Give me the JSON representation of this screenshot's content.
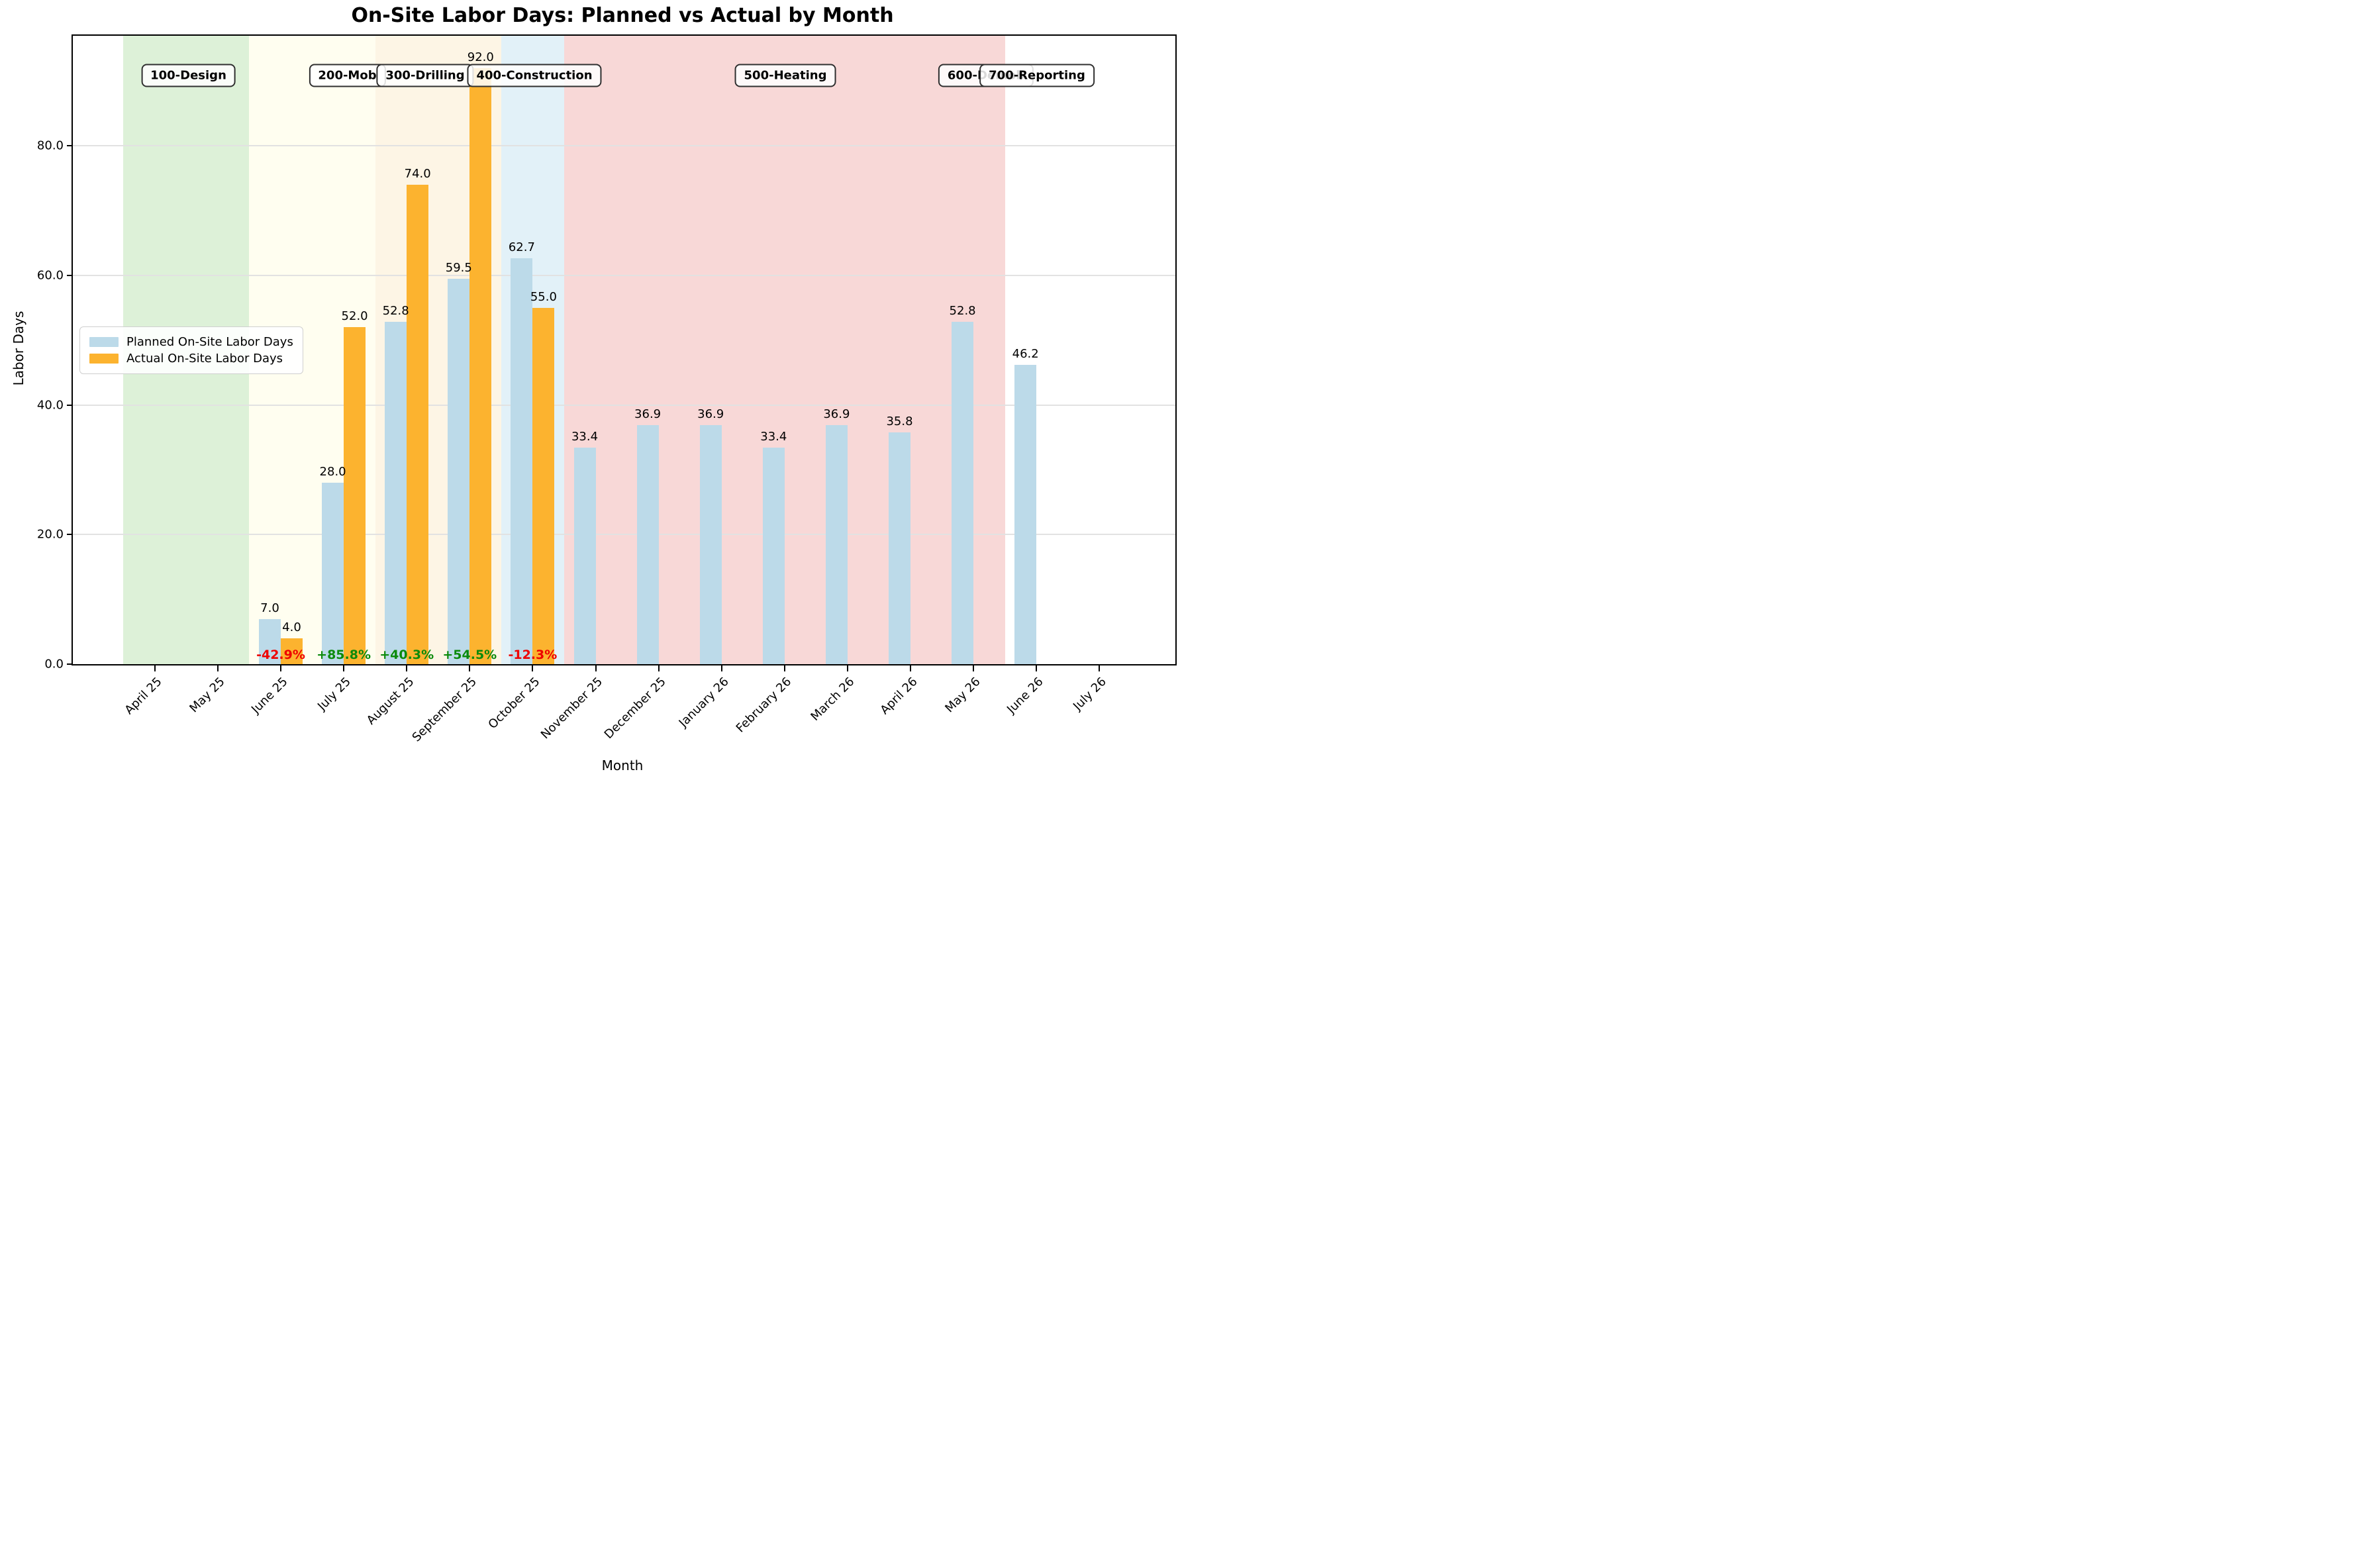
{
  "title": "On-Site Labor Days: Planned vs Actual by Month",
  "axes": {
    "xlabel": "Month",
    "ylabel": "Labor Days",
    "ytick_labels": [
      "0.0",
      "20.0",
      "40.0",
      "60.0",
      "80.0"
    ]
  },
  "legend": {
    "items": [
      {
        "label": "Planned On-Site Labor Days",
        "color": "#bcdae9"
      },
      {
        "label": "Actual On-Site Labor Days",
        "color": "#fcb32f"
      }
    ]
  },
  "chart_data": {
    "type": "bar",
    "title": "On-Site Labor Days: Planned vs Actual by Month",
    "xlabel": "Month",
    "ylabel": "Labor Days",
    "ylim": [
      0,
      97
    ],
    "yticks": [
      0,
      20,
      40,
      60,
      80
    ],
    "grid": "horizontal",
    "legend_position": "center-left",
    "categories": [
      "April 25",
      "May 25",
      "June 25",
      "July 25",
      "August 25",
      "September 25",
      "October 25",
      "November 25",
      "December 25",
      "January 26",
      "February 26",
      "March 26",
      "April 26",
      "May 26",
      "June 26",
      "July 26"
    ],
    "series": [
      {
        "name": "Planned On-Site Labor Days",
        "color": "#bcdae9",
        "values": [
          null,
          null,
          7.0,
          28.0,
          52.8,
          59.5,
          62.7,
          33.4,
          36.9,
          36.9,
          33.4,
          36.9,
          35.8,
          52.8,
          46.2,
          null
        ]
      },
      {
        "name": "Actual On-Site Labor Days",
        "color": "#fcb32f",
        "values": [
          null,
          null,
          4.0,
          52.0,
          74.0,
          92.0,
          55.0,
          null,
          null,
          null,
          null,
          null,
          null,
          null,
          null,
          null
        ]
      }
    ],
    "variance_labels": [
      {
        "category": "June 25",
        "text": "-42.9%",
        "color": "#ee0000"
      },
      {
        "category": "July 25",
        "text": "+85.8%",
        "color": "#0b8a0b"
      },
      {
        "category": "August 25",
        "text": "+40.3%",
        "color": "#0b8a0b"
      },
      {
        "category": "September 25",
        "text": "+54.5%",
        "color": "#0b8a0b"
      },
      {
        "category": "October 25",
        "text": "-12.3%",
        "color": "#ee0000"
      }
    ],
    "phases": [
      {
        "label": "100-Design",
        "start_category": "April 25",
        "end_category": "May 25",
        "band_color": "#ddf1d8"
      },
      {
        "label": "200-Mob",
        "start_category": "June 25",
        "end_category": "July 25",
        "band_color": "#fffef0"
      },
      {
        "label": "300-Drilling",
        "start_category": "August 25",
        "end_category": "September 25",
        "band_color": "#fdf5e5"
      },
      {
        "label": "400-Construction",
        "start_category": "October 25",
        "end_category": "October 25",
        "band_color": "#e2f1f8"
      },
      {
        "label": "500-Heating",
        "start_category": "November 25",
        "end_category": "May 26",
        "band_color": "#f8d8d7"
      },
      {
        "label": "600-Demob",
        "start_category": "June 26",
        "end_category": "June 26",
        "band_color": "#ffffff"
      },
      {
        "label": "700-Reporting",
        "start_category": "July 26",
        "end_category": "July 26",
        "band_color": "#ffffff"
      }
    ]
  }
}
